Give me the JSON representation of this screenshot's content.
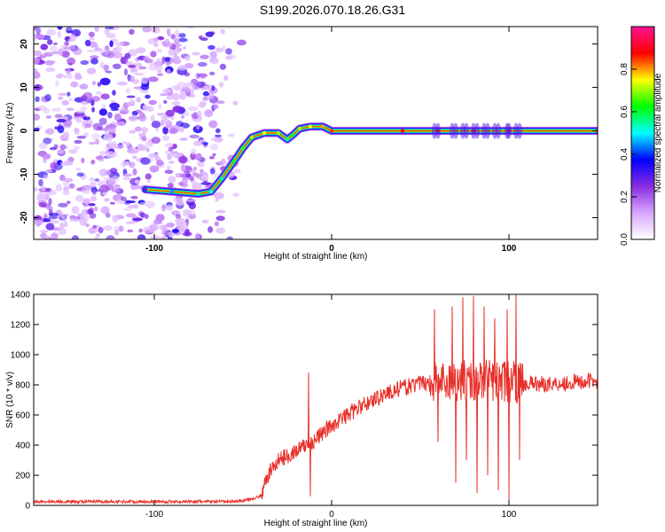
{
  "title": "S199.2026.070.18.26.G31",
  "chart_data": [
    {
      "type": "heatmap",
      "xlabel": "Height of straight line (km)",
      "ylabel": "Frequency (Hz)",
      "xlim": [
        -168,
        150
      ],
      "ylim": [
        -25,
        24
      ],
      "xticks": [
        -100,
        0,
        100
      ],
      "yticks": [
        -20,
        -10,
        0,
        10,
        20
      ],
      "colorbar": {
        "label": "Normalized spectral amplitude",
        "range": [
          0,
          1
        ],
        "ticks": [
          "0.0",
          "0.2",
          "0.4",
          "0.6",
          "0.8"
        ],
        "tick_values": [
          0.0,
          0.2,
          0.4,
          0.6,
          0.8
        ],
        "colors": [
          "#ffffff",
          "#d7a6ff",
          "#8a2be2",
          "#0000ff",
          "#00ffff",
          "#00ff00",
          "#ffff00",
          "#ff0000",
          "#ff1493"
        ]
      },
      "noise_region": {
        "x_range": [
          -168,
          -50
        ],
        "y_range": [
          -25,
          24
        ]
      },
      "trace": [
        [
          -105,
          -13.5
        ],
        [
          -90,
          -14
        ],
        [
          -75,
          -14.5
        ],
        [
          -68,
          -14
        ],
        [
          -62,
          -11
        ],
        [
          -55,
          -7
        ],
        [
          -50,
          -4
        ],
        [
          -45,
          -1.5
        ],
        [
          -38,
          -0.5
        ],
        [
          -30,
          -0.5
        ],
        [
          -25,
          -2
        ],
        [
          -22,
          -1
        ],
        [
          -18,
          0.5
        ],
        [
          -12,
          1
        ],
        [
          -5,
          1
        ],
        [
          0,
          0
        ],
        [
          40,
          0
        ],
        [
          60,
          0
        ],
        [
          80,
          0
        ],
        [
          100,
          0
        ],
        [
          150,
          0
        ]
      ],
      "trace_intensity": [
        0.3,
        0.45,
        0.55,
        0.5,
        0.55,
        0.6,
        0.65,
        0.7,
        0.75,
        0.7,
        0.55,
        0.6,
        0.7,
        0.75,
        0.8,
        0.85,
        0.9,
        0.9,
        0.9,
        0.9,
        0.85
      ]
    },
    {
      "type": "line",
      "xlabel": "Height of straight line (km)",
      "ylabel": "SNR (10 * v/v)",
      "xlim": [
        -168,
        150
      ],
      "ylim": [
        0,
        1400
      ],
      "xticks": [
        -100,
        0,
        100
      ],
      "yticks": [
        0,
        200,
        400,
        600,
        800,
        1000,
        1200,
        1400
      ],
      "color": "#e8302a",
      "envelope": [
        [
          -168,
          25
        ],
        [
          -60,
          25
        ],
        [
          -50,
          30
        ],
        [
          -40,
          60
        ],
        [
          -35,
          220
        ],
        [
          -30,
          300
        ],
        [
          -20,
          360
        ],
        [
          -10,
          430
        ],
        [
          0,
          530
        ],
        [
          10,
          610
        ],
        [
          20,
          680
        ],
        [
          30,
          740
        ],
        [
          40,
          780
        ],
        [
          50,
          810
        ],
        [
          60,
          820
        ],
        [
          70,
          830
        ],
        [
          80,
          830
        ],
        [
          90,
          830
        ],
        [
          100,
          820
        ],
        [
          110,
          810
        ],
        [
          120,
          805
        ],
        [
          130,
          810
        ],
        [
          140,
          820
        ],
        [
          150,
          830
        ]
      ],
      "spikes": [
        [
          -13,
          880
        ],
        [
          -12,
          60
        ],
        [
          58,
          1300
        ],
        [
          60,
          420
        ],
        [
          68,
          1320
        ],
        [
          70,
          150
        ],
        [
          74,
          1380
        ],
        [
          76,
          300
        ],
        [
          80,
          1390
        ],
        [
          82,
          80
        ],
        [
          86,
          1320
        ],
        [
          88,
          200
        ],
        [
          92,
          1240
        ],
        [
          94,
          100
        ],
        [
          99,
          1300
        ],
        [
          100,
          30
        ],
        [
          104,
          1400
        ],
        [
          106,
          300
        ]
      ]
    }
  ]
}
